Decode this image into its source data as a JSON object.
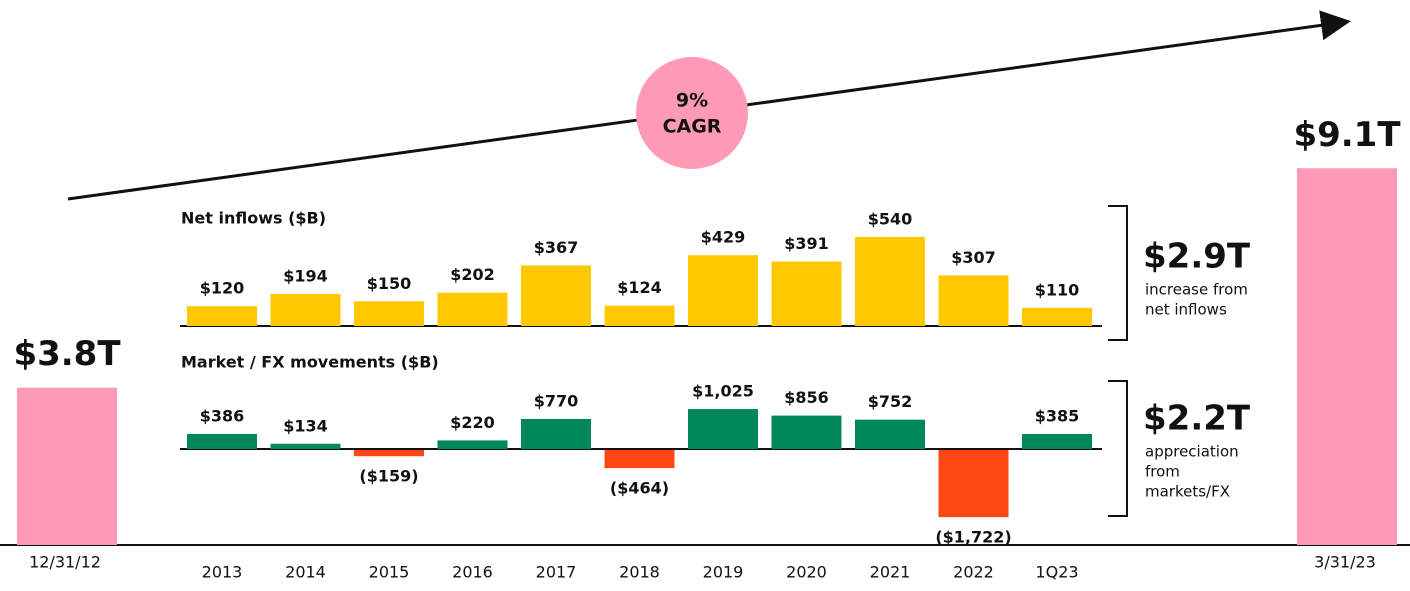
{
  "chart_data": [
    {
      "type": "bar",
      "title": "Net inflows ($B)",
      "categories": [
        "2013",
        "2014",
        "2015",
        "2016",
        "2017",
        "2018",
        "2019",
        "2020",
        "2021",
        "2022",
        "1Q23"
      ],
      "values": [
        120,
        194,
        150,
        202,
        367,
        124,
        429,
        391,
        540,
        307,
        110
      ],
      "value_labels": [
        "$120",
        "$194",
        "$150",
        "$202",
        "$367",
        "$124",
        "$429",
        "$391",
        "$540",
        "$307",
        "$110"
      ],
      "color": "#ffc800"
    },
    {
      "type": "bar",
      "title": "Market / FX movements ($B)",
      "values": [
        386,
        134,
        -159,
        220,
        770,
        -464,
        1025,
        856,
        752,
        -1722,
        385
      ],
      "value_labels": [
        "$386",
        "$134",
        "($159)",
        "$220",
        "$770",
        "($464)",
        "$1,025",
        "$856",
        "$752",
        "($1,722)",
        "$385"
      ],
      "color": "#00875a",
      "negative_color": "#ff4713"
    },
    {
      "type": "bar",
      "categories": [
        "12/31/12",
        "3/31/23"
      ],
      "values": [
        3.8,
        9.1
      ],
      "value_labels": [
        "$3.8T",
        "$9.1T"
      ],
      "color": "#ff9ab6"
    }
  ],
  "annotations": {
    "cagr": [
      "9%",
      "CAGR"
    ],
    "inflow_total": {
      "value": "$2.9T",
      "text": [
        "increase from",
        "net inflows"
      ]
    },
    "market_total": {
      "value": "$2.2T",
      "text": [
        "appreciation",
        "from",
        "markets/FX"
      ]
    }
  }
}
